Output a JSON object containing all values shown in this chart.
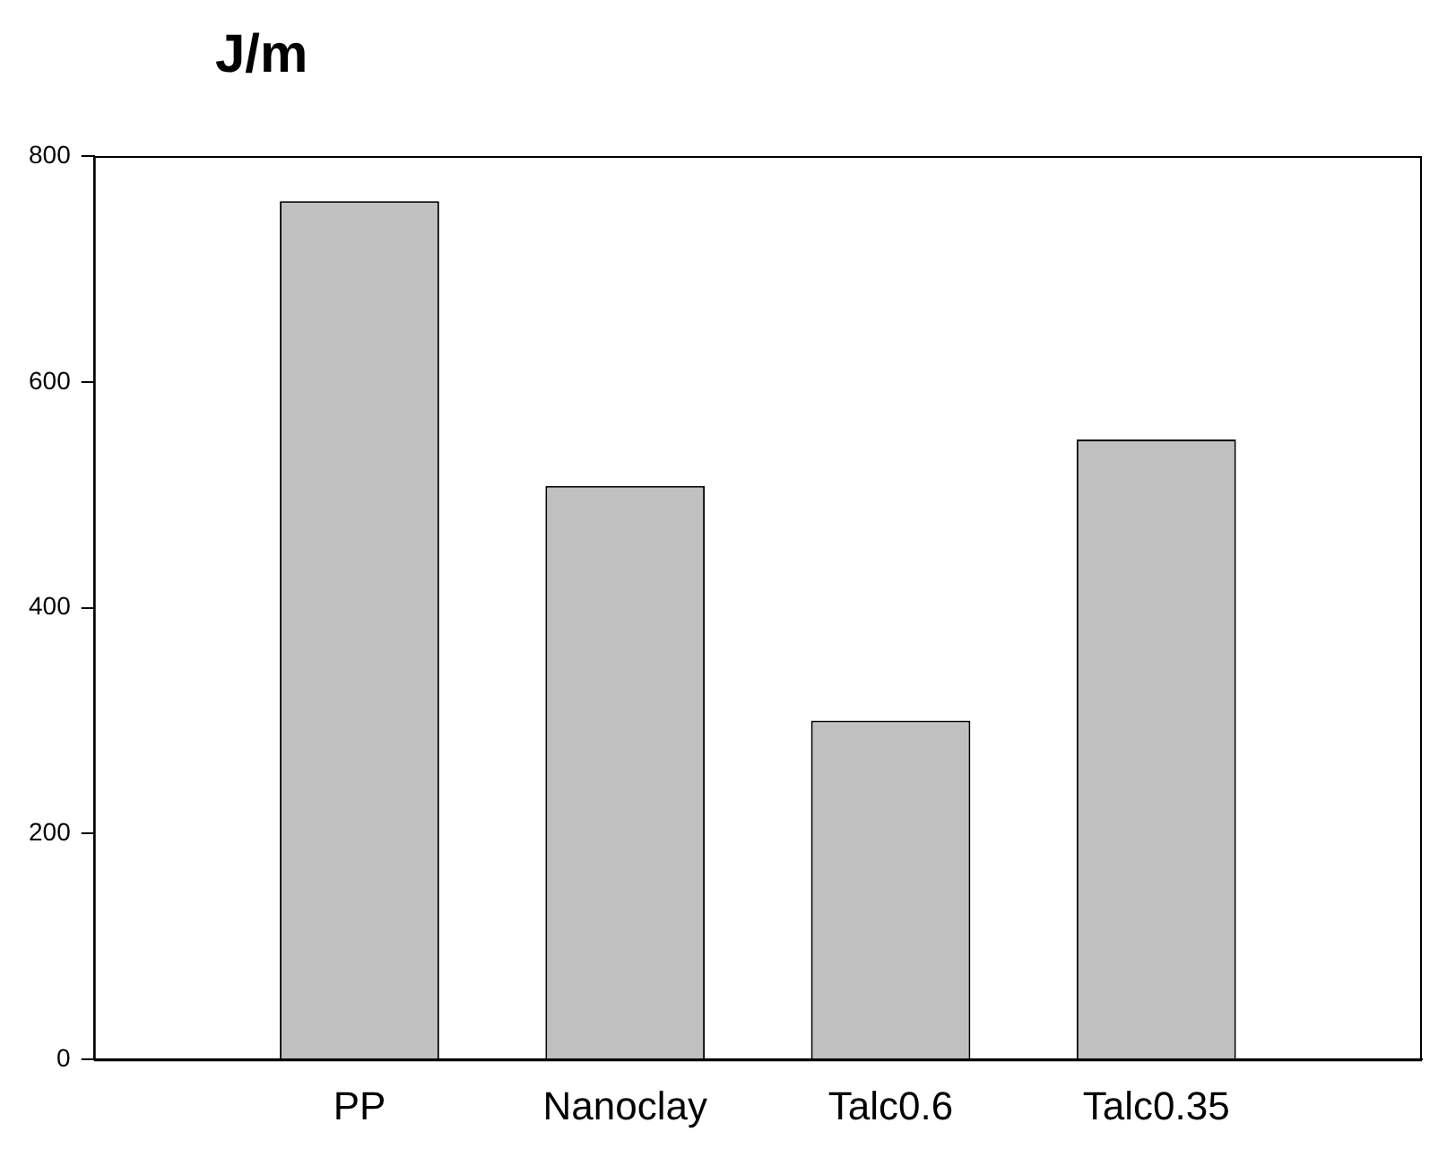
{
  "chart_data": {
    "type": "bar",
    "title": "J/m",
    "categories": [
      "PP",
      "Nanoclay",
      "Talc0.6",
      "Talc0.35"
    ],
    "values": [
      760,
      508,
      300,
      549
    ],
    "color": "#c0c0c0",
    "ylim": [
      0,
      800
    ],
    "yticks": [
      0,
      200,
      400,
      600,
      800
    ],
    "grid": false,
    "legend": false
  }
}
